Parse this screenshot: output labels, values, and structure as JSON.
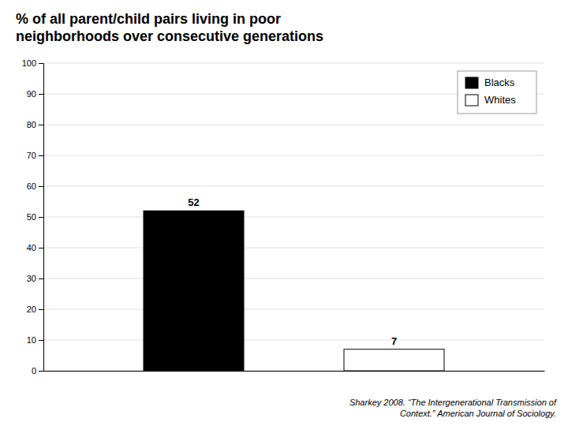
{
  "chart_data": {
    "type": "bar",
    "title": "% of all parent/child pairs living in poor\nneighborhoods over consecutive generations",
    "categories": [
      "Blacks",
      "Whites"
    ],
    "values": [
      52,
      7
    ],
    "colors": [
      "#000000",
      "#ffffff"
    ],
    "ylim": [
      0,
      100
    ],
    "yticks": [
      0,
      10,
      20,
      30,
      40,
      50,
      60,
      70,
      80,
      90,
      100
    ],
    "grid": true,
    "legend": "upper right",
    "data_labels": true,
    "tick_labels": "y",
    "annotations": [
      "Sharkey 2008. “The Intergenerational Transmission of",
      "Context.” American Journal of Sociology."
    ]
  }
}
